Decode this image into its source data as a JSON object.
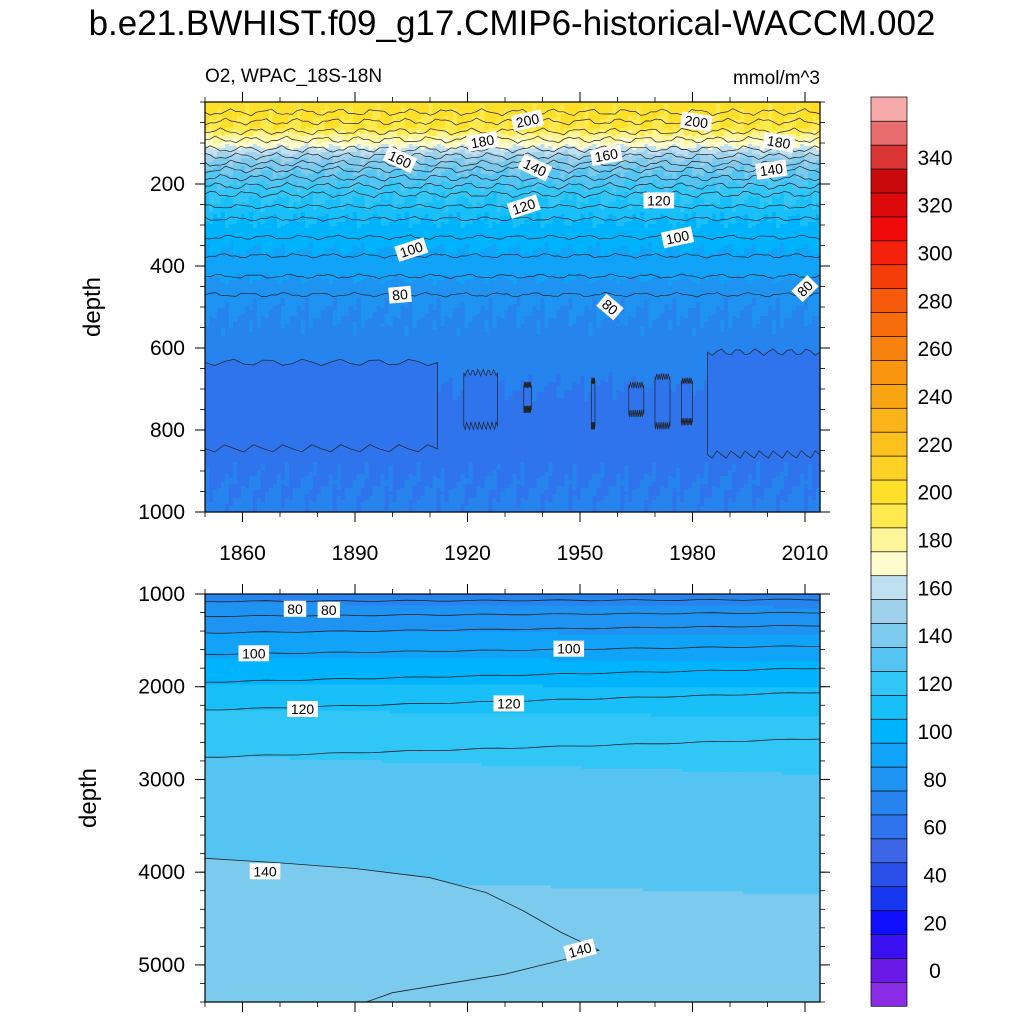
{
  "chart_data": {
    "type": "contour",
    "title": "b.e21.BWHIST.f09_g17.CMIP6-historical-WACCM.002",
    "variable": "O2",
    "region": "WPAC_18S-18N",
    "units": "mmol/m^3",
    "x_ticks": [
      "1860",
      "1890",
      "1920",
      "1950",
      "1980",
      "2010"
    ],
    "x_tick_values": [
      1860,
      1890,
      1920,
      1950,
      1980,
      2010
    ],
    "xlim": [
      1850,
      2014
    ],
    "panels": [
      {
        "name": "upper",
        "left_label": "O2, WPAC_18S-18N",
        "right_label": "mmol/m^3",
        "ylabel": "depth",
        "ylim": [
          0,
          1000
        ],
        "y_ticks": [
          "200",
          "400",
          "600",
          "800",
          "1000"
        ],
        "y_tick_values": [
          200,
          400,
          600,
          800,
          1000
        ],
        "contour_labels": [
          {
            "text": "200",
            "year": 1936,
            "depth": 45
          },
          {
            "text": "200",
            "year": 1981,
            "depth": 48
          },
          {
            "text": "180",
            "year": 1924,
            "depth": 96
          },
          {
            "text": "180",
            "year": 2003,
            "depth": 98
          },
          {
            "text": "160",
            "year": 1902,
            "depth": 140
          },
          {
            "text": "160",
            "year": 1957,
            "depth": 130
          },
          {
            "text": "140",
            "year": 1938,
            "depth": 160
          },
          {
            "text": "140",
            "year": 2001,
            "depth": 165
          },
          {
            "text": "120",
            "year": 1935,
            "depth": 255
          },
          {
            "text": "120",
            "year": 1971,
            "depth": 240
          },
          {
            "text": "100",
            "year": 1905,
            "depth": 360
          },
          {
            "text": "100",
            "year": 1976,
            "depth": 330
          },
          {
            "text": "80",
            "year": 1902,
            "depth": 470
          },
          {
            "text": "80",
            "year": 1958,
            "depth": 500
          },
          {
            "text": "80",
            "year": 2010,
            "depth": 455
          }
        ]
      },
      {
        "name": "lower",
        "ylabel": "depth",
        "ylim": [
          1000,
          5400
        ],
        "y_ticks": [
          "1000",
          "2000",
          "3000",
          "4000",
          "5000"
        ],
        "y_tick_values": [
          1000,
          2000,
          3000,
          4000,
          5000
        ],
        "contour_labels": [
          {
            "text": "80",
            "year": 1874,
            "depth": 1160
          },
          {
            "text": "80",
            "year": 1883,
            "depth": 1170
          },
          {
            "text": "100",
            "year": 1863,
            "depth": 1640
          },
          {
            "text": "100",
            "year": 1947,
            "depth": 1590
          },
          {
            "text": "120",
            "year": 1876,
            "depth": 2240
          },
          {
            "text": "120",
            "year": 1931,
            "depth": 2180
          },
          {
            "text": "140",
            "year": 1866,
            "depth": 3990
          },
          {
            "text": "140",
            "year": 1950,
            "depth": 4840
          }
        ]
      }
    ],
    "colorbar": {
      "min": -10,
      "max": 360,
      "step": 10,
      "labels": [
        "0",
        "20",
        "40",
        "60",
        "80",
        "100",
        "120",
        "140",
        "160",
        "180",
        "200",
        "220",
        "240",
        "260",
        "280",
        "300",
        "320",
        "340"
      ],
      "label_values": [
        0,
        20,
        40,
        60,
        80,
        100,
        120,
        140,
        160,
        180,
        200,
        220,
        240,
        260,
        280,
        300,
        320,
        340
      ],
      "colors": [
        "#8a2be6",
        "#6a1ae6",
        "#3a10f0",
        "#1010ff",
        "#1638f0",
        "#2a50ea",
        "#3c66e6",
        "#2f74ec",
        "#2784ee",
        "#1e93f2",
        "#10a3f8",
        "#00b3fd",
        "#18bff8",
        "#31c6f5",
        "#55c4f2",
        "#7ccaee",
        "#9fd1eb",
        "#bfe0f0",
        "#fefccc",
        "#fef59a",
        "#fee94f",
        "#fee02a",
        "#fdd224",
        "#fcc11c",
        "#fab318",
        "#f9a411",
        "#f9950e",
        "#f8820e",
        "#f76d0c",
        "#f65a0b",
        "#f53d0a",
        "#f5210a",
        "#f00a0a",
        "#dc0a0a",
        "#c80a0a",
        "#da3535",
        "#e86e6e",
        "#f6aaaa"
      ]
    }
  }
}
